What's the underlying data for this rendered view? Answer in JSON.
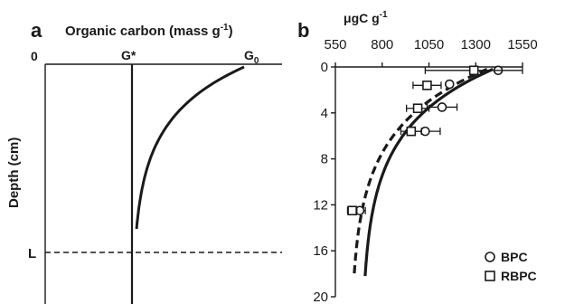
{
  "chart_data": [
    {
      "panel": "a",
      "type": "line",
      "title": "Organic carbon (mass g",
      "title_sup": "-1",
      "title_close": ")",
      "ylabel": "Depth (cm)",
      "x_marks": {
        "zero": "0",
        "gstar": "G*",
        "g0": "G",
        "g0_sub": "0"
      },
      "depth_marker": "L",
      "series": [
        {
          "style": "solid",
          "note": "schematic decay from G0 at surface toward G* with depth"
        }
      ]
    },
    {
      "panel": "b",
      "type": "scatter",
      "xlabel": "μgC g",
      "xlabel_sup": "-1",
      "xlim": [
        550,
        1550
      ],
      "xticks": [
        "550",
        "800",
        "1050",
        "1300",
        "1550"
      ],
      "ylim": [
        0,
        20
      ],
      "yticks": [
        "0",
        "4",
        "8",
        "12",
        "16",
        "20"
      ],
      "legend_position": "bottom-right",
      "series": [
        {
          "name": "BPC",
          "marker": "circle",
          "points": [
            {
              "x": 1420,
              "y": 0.3,
              "xerr": 0
            },
            {
              "x": 1160,
              "y": 1.5,
              "xerr": 0
            },
            {
              "x": 1120,
              "y": 3.5,
              "xerr": 80
            },
            {
              "x": 1030,
              "y": 5.6,
              "xerr": 80
            },
            {
              "x": 680,
              "y": 12.5,
              "xerr": 30
            }
          ],
          "fit": {
            "style": "solid",
            "surface": 1420,
            "deep": 690,
            "k": 0.2
          }
        },
        {
          "name": "RBPC",
          "marker": "square",
          "points": [
            {
              "x": 1290,
              "y": 0.3,
              "xerr": 260
            },
            {
              "x": 1040,
              "y": 1.6,
              "xerr": 75
            },
            {
              "x": 990,
              "y": 3.6,
              "xerr": 60
            },
            {
              "x": 955,
              "y": 5.6,
              "xerr": 55
            },
            {
              "x": 640,
              "y": 12.5,
              "xerr": 25
            }
          ],
          "fit": {
            "style": "dashed",
            "surface": 1390,
            "deep": 630,
            "k": 0.2
          }
        }
      ]
    }
  ]
}
